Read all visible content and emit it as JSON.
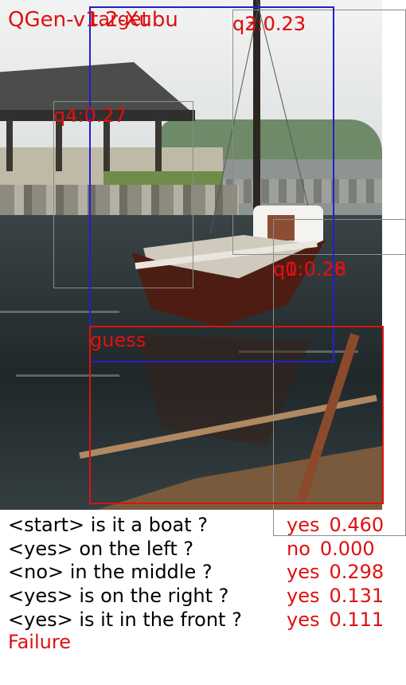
{
  "title": "QGen-v1.2-Xubu",
  "boxes": {
    "target": "target",
    "guess": "guess",
    "q0": "q0:0.28",
    "q1": "q1:0.26",
    "q2": "q2:0.23",
    "q3": "q3:0.23",
    "q4": "q4:0.27"
  },
  "dialog": [
    {
      "question": "<start> is it a boat ?",
      "answer": "yes",
      "prob": "0.460"
    },
    {
      "question": "<yes> on the left ?",
      "answer": "no",
      "prob": "0.000"
    },
    {
      "question": "<no> in the middle ?",
      "answer": "yes",
      "prob": "0.298"
    },
    {
      "question": "<yes> is on the right ?",
      "answer": "yes",
      "prob": "0.131"
    },
    {
      "question": "<yes> is it in the front ?",
      "answer": "yes",
      "prob": "0.111"
    }
  ],
  "status": "Failure",
  "colors": {
    "overlay_text": "#e01010",
    "target_box": "#2020d0",
    "guess_box": "#e01010",
    "candidate_box": "#8c8c8c"
  }
}
